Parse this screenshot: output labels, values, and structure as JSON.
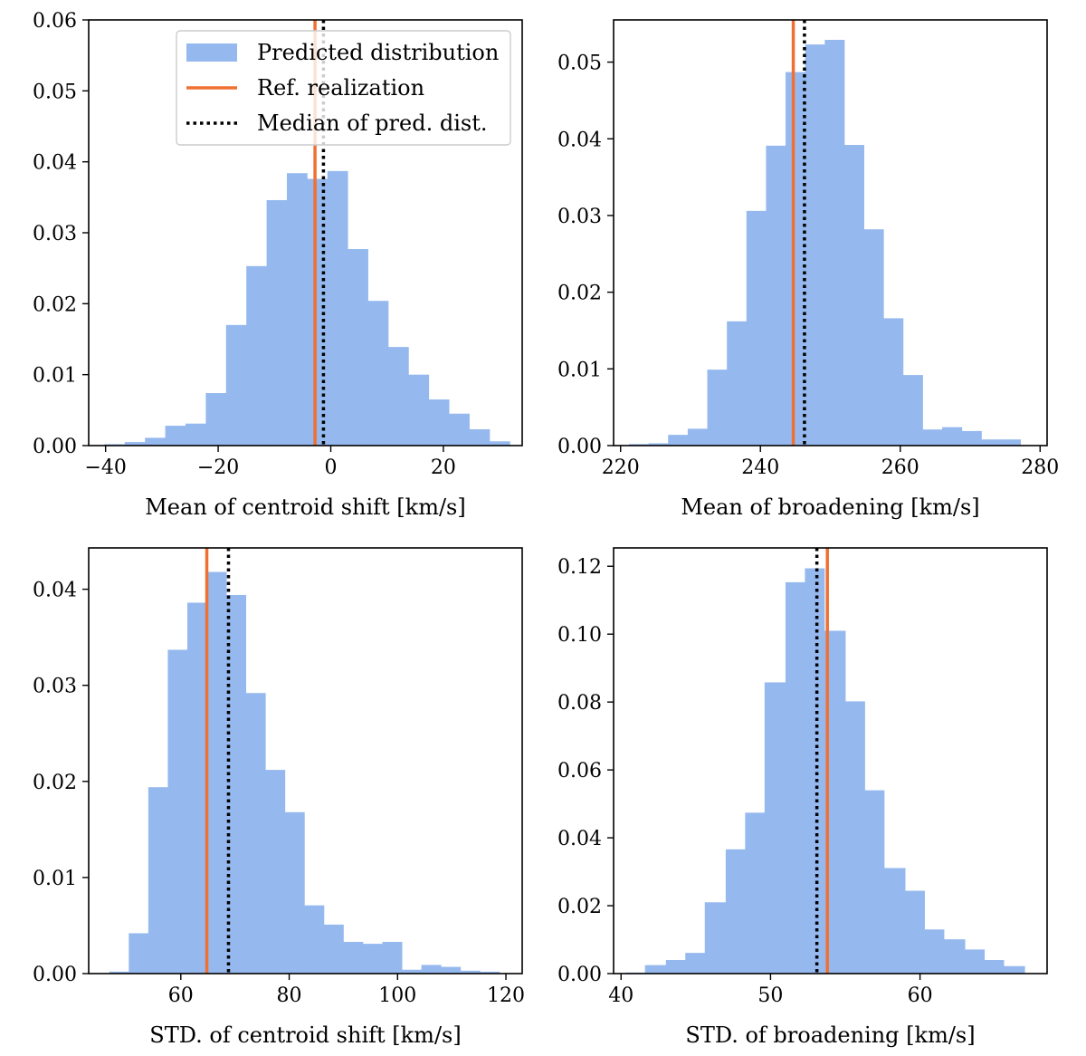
{
  "colors": {
    "hist": "#95b9ee",
    "ref": "#f07033",
    "median": "#000000"
  },
  "legend": {
    "items": [
      {
        "label": "Predicted distribution",
        "kind": "patch"
      },
      {
        "label": "Ref. realization",
        "kind": "line"
      },
      {
        "label": "Median of pred. dist.",
        "kind": "dotted"
      }
    ],
    "placement": "upper-right of first panel"
  },
  "chart_data": [
    {
      "type": "histogram",
      "xlabel": "Mean of centroid shift [km/s]",
      "ylabel": "",
      "xlim": [
        -43,
        34
      ],
      "ylim": [
        0,
        0.06
      ],
      "xticks": [
        -40,
        -20,
        0,
        20
      ],
      "xtick_labels": [
        "−40",
        "−20",
        "0",
        "20"
      ],
      "yticks": [
        0,
        0.01,
        0.02,
        0.03,
        0.04,
        0.05,
        0.06
      ],
      "ytick_labels": [
        "0.00",
        "0.01",
        "0.02",
        "0.03",
        "0.04",
        "0.05",
        "0.06"
      ],
      "bin_edges": [
        -40.2,
        -36.6,
        -33.0,
        -29.4,
        -25.8,
        -22.2,
        -18.6,
        -15.0,
        -11.4,
        -7.8,
        -4.2,
        -0.6,
        3.0,
        6.6,
        10.2,
        13.8,
        17.4,
        21.0,
        24.6,
        28.2,
        31.8
      ],
      "values": [
        0.0002,
        0.0005,
        0.0011,
        0.0028,
        0.0031,
        0.0074,
        0.017,
        0.0253,
        0.0346,
        0.0384,
        0.0376,
        0.0387,
        0.0277,
        0.0204,
        0.0139,
        0.01,
        0.0065,
        0.0045,
        0.0023,
        0.0006
      ],
      "ref_value": -2.8,
      "median_value": -1.3,
      "legend": true
    },
    {
      "type": "histogram",
      "xlabel": "Mean of broadening [km/s]",
      "ylabel": "",
      "xlim": [
        219,
        281
      ],
      "ylim": [
        0,
        0.0555
      ],
      "xticks": [
        220,
        240,
        260,
        280
      ],
      "xtick_labels": [
        "220",
        "240",
        "260",
        "280"
      ],
      "yticks": [
        0,
        0.01,
        0.02,
        0.03,
        0.04,
        0.05
      ],
      "ytick_labels": [
        "0.00",
        "0.01",
        "0.02",
        "0.03",
        "0.04",
        "0.05"
      ],
      "bin_edges": [
        221.2,
        224.0,
        226.8,
        229.6,
        232.4,
        235.2,
        238.0,
        240.8,
        243.6,
        246.4,
        249.2,
        252.0,
        254.8,
        257.6,
        260.4,
        263.2,
        266.0,
        268.8,
        271.6,
        274.4,
        277.2
      ],
      "values": [
        0.0002,
        0.0003,
        0.0014,
        0.0022,
        0.0099,
        0.0162,
        0.0306,
        0.0391,
        0.0487,
        0.0523,
        0.0529,
        0.0392,
        0.0282,
        0.0166,
        0.0092,
        0.0021,
        0.0024,
        0.0019,
        0.0008,
        0.0008
      ],
      "ref_value": 244.7,
      "median_value": 246.3,
      "legend": false
    },
    {
      "type": "histogram",
      "xlabel": "STD. of centroid shift [km/s]",
      "ylabel": "",
      "xlim": [
        43,
        123
      ],
      "ylim": [
        0,
        0.0443
      ],
      "xticks": [
        60,
        80,
        100,
        120
      ],
      "xtick_labels": [
        "60",
        "80",
        "100",
        "120"
      ],
      "yticks": [
        0,
        0.01,
        0.02,
        0.03,
        0.04
      ],
      "ytick_labels": [
        "0.00",
        "0.01",
        "0.02",
        "0.03",
        "0.04"
      ],
      "bin_edges": [
        46.8,
        50.4,
        54.0,
        57.6,
        61.2,
        64.8,
        68.4,
        72.0,
        75.6,
        79.2,
        82.8,
        86.4,
        90.0,
        93.6,
        97.2,
        100.8,
        104.4,
        108.0,
        111.6,
        115.2,
        118.8
      ],
      "values": [
        0.0002,
        0.0042,
        0.0194,
        0.0337,
        0.0386,
        0.0418,
        0.0394,
        0.0292,
        0.0212,
        0.0168,
        0.0071,
        0.0051,
        0.0033,
        0.0031,
        0.0033,
        0.0004,
        0.0009,
        0.0007,
        0.0003,
        0.0002
      ],
      "ref_value": 64.8,
      "median_value": 68.8,
      "legend": false
    },
    {
      "type": "histogram",
      "xlabel": "STD. of broadening [km/s]",
      "ylabel": "",
      "xlim": [
        39.5,
        68.5
      ],
      "ylim": [
        0,
        0.1254
      ],
      "xticks": [
        40,
        50,
        60
      ],
      "xtick_labels": [
        "40",
        "50",
        "60"
      ],
      "yticks": [
        0,
        0.02,
        0.04,
        0.06,
        0.08,
        0.1,
        0.12
      ],
      "ytick_labels": [
        "0.00",
        "0.02",
        "0.04",
        "0.06",
        "0.08",
        "0.10",
        "0.12"
      ],
      "bin_edges": [
        40.3,
        41.6,
        43.0,
        44.3,
        45.6,
        47.0,
        48.3,
        49.6,
        51.0,
        52.3,
        53.6,
        55.0,
        56.3,
        57.6,
        59.0,
        60.3,
        61.6,
        63.0,
        64.3,
        65.6,
        67.0
      ],
      "values": [
        0.0003,
        0.0025,
        0.004,
        0.0061,
        0.021,
        0.0366,
        0.0474,
        0.0858,
        0.1153,
        0.1194,
        0.101,
        0.0802,
        0.054,
        0.0311,
        0.0244,
        0.013,
        0.0101,
        0.0071,
        0.004,
        0.0022
      ],
      "ref_value": 53.8,
      "median_value": 53.1,
      "legend": false
    }
  ]
}
